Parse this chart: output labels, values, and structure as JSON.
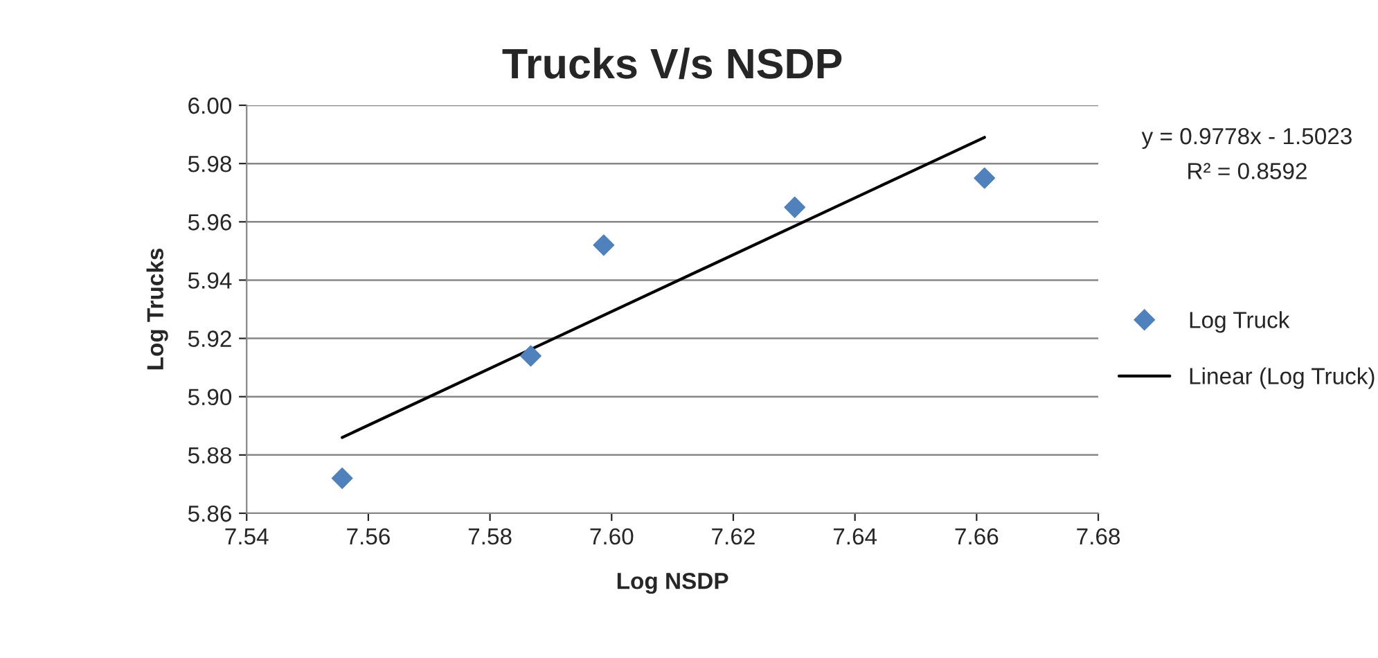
{
  "chart_data": {
    "type": "scatter",
    "title": "Trucks V/s NSDP",
    "xlabel": "Log NSDP",
    "ylabel": "Log Trucks",
    "series": [
      {
        "name": "Log Truck",
        "marker": "diamond",
        "color": "#4f81bd",
        "x": [
          7.5557,
          7.5867,
          7.5987,
          7.6301,
          7.6613
        ],
        "values": [
          5.872,
          5.914,
          5.952,
          5.965,
          5.975
        ]
      },
      {
        "name": "Linear (Log Truck)",
        "type": "line",
        "line_style": "solid",
        "color": "#000000",
        "x": [
          7.5557,
          7.6613
        ],
        "values": [
          5.886,
          5.989
        ]
      }
    ],
    "annotations": [
      "y = 0.9778x - 1.5023",
      "R² = 0.8592"
    ],
    "xlim": [
      7.54,
      7.68
    ],
    "ylim": [
      5.86,
      6.0
    ],
    "xticks": [
      {
        "value": 7.54,
        "label": "7.54"
      },
      {
        "value": 7.56,
        "label": "7.56"
      },
      {
        "value": 7.58,
        "label": "7.58"
      },
      {
        "value": 7.6,
        "label": "7.60"
      },
      {
        "value": 7.62,
        "label": "7.62"
      },
      {
        "value": 7.64,
        "label": "7.64"
      },
      {
        "value": 7.66,
        "label": "7.66"
      },
      {
        "value": 7.68,
        "label": "7.68"
      }
    ],
    "yticks": [
      {
        "value": 5.86,
        "label": "5.86"
      },
      {
        "value": 5.88,
        "label": "5.88"
      },
      {
        "value": 5.9,
        "label": "5.90"
      },
      {
        "value": 5.92,
        "label": "5.92"
      },
      {
        "value": 5.94,
        "label": "5.94"
      },
      {
        "value": 5.96,
        "label": "5.96"
      },
      {
        "value": 5.98,
        "label": "5.98"
      },
      {
        "value": 6.0,
        "label": "6.00"
      }
    ],
    "grid": "y",
    "legend": "right"
  }
}
